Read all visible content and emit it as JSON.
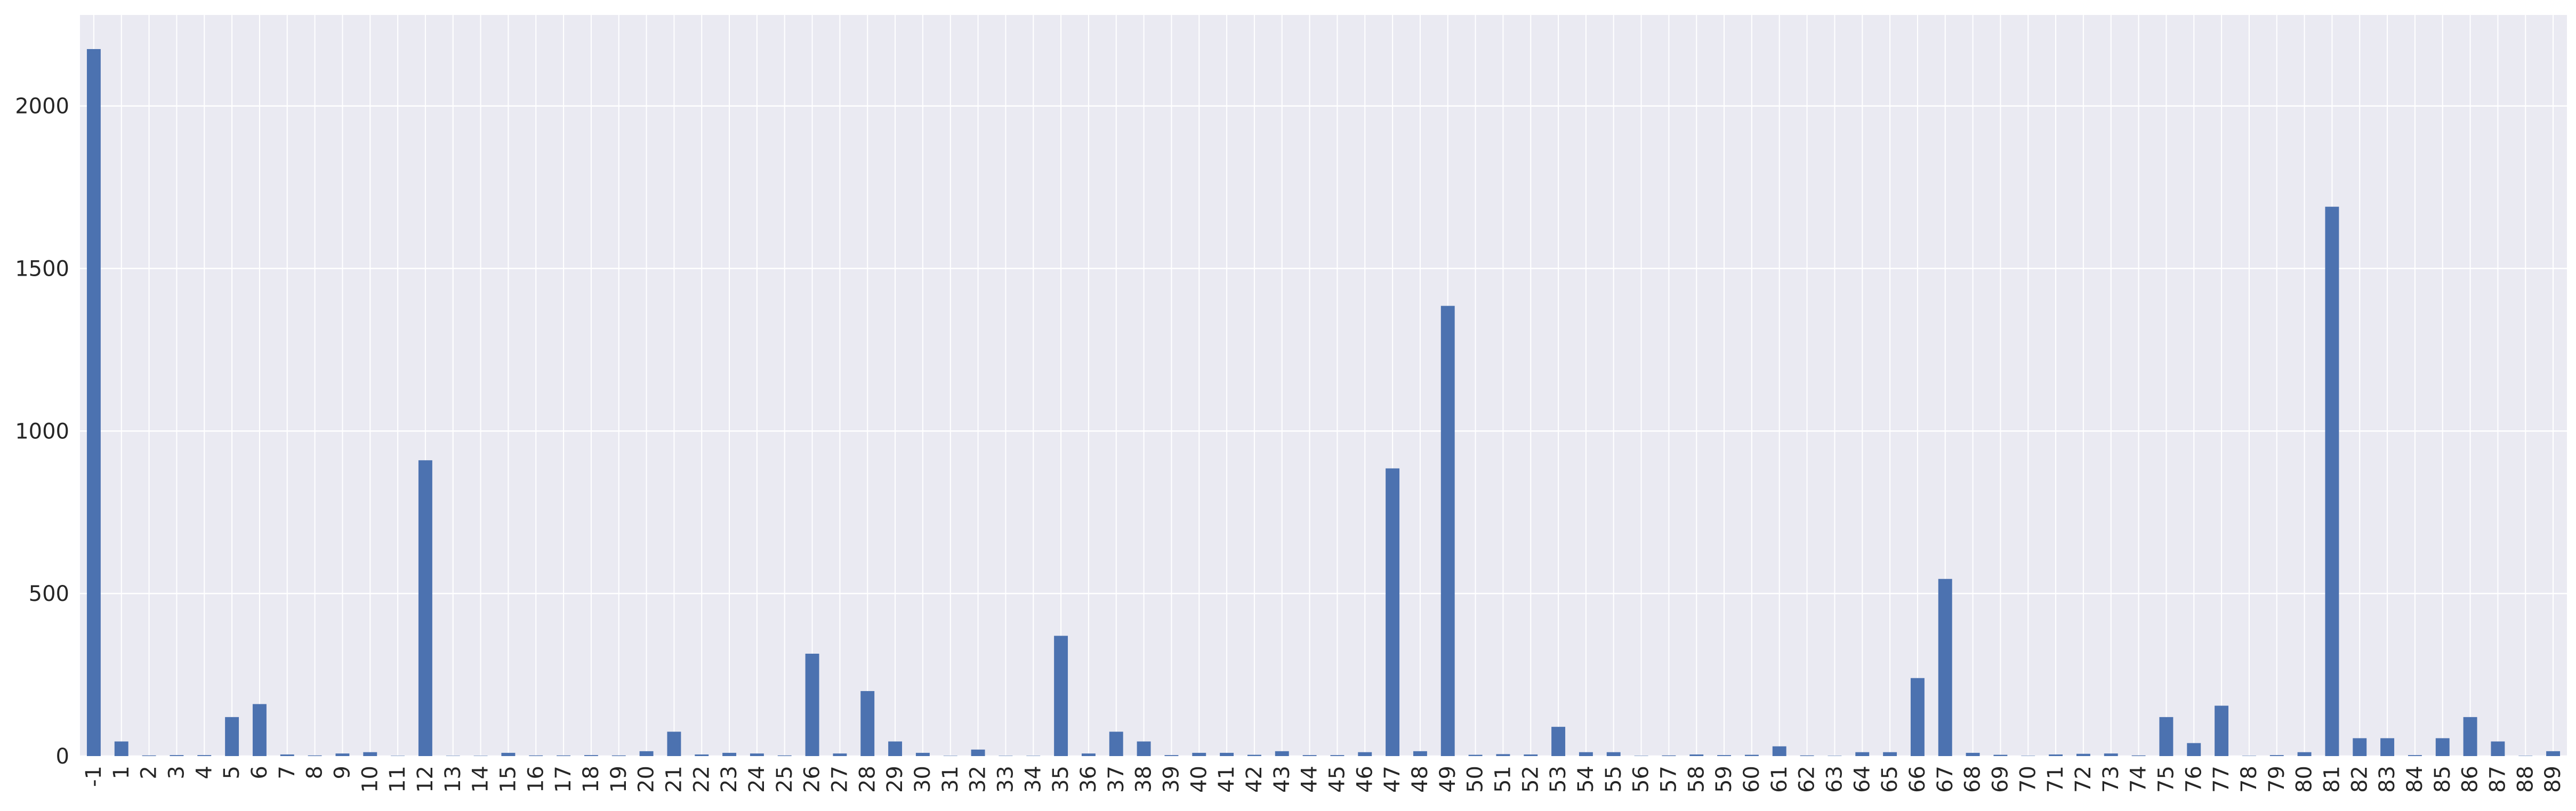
{
  "chart_data": {
    "type": "bar",
    "title": "",
    "xlabel": "",
    "ylabel": "",
    "ylim": [
      0,
      2280
    ],
    "yticks": [
      0,
      500,
      1000,
      1500,
      2000
    ],
    "grid": true,
    "legend": "none",
    "colors": {
      "bar": "#4c72b0",
      "background": "#eaeaf2",
      "grid": "#ffffff",
      "text": "#262626"
    },
    "categories": [
      "-1",
      "1",
      "2",
      "3",
      "4",
      "5",
      "6",
      "7",
      "8",
      "9",
      "10",
      "11",
      "12",
      "13",
      "14",
      "15",
      "16",
      "17",
      "18",
      "19",
      "20",
      "21",
      "22",
      "23",
      "24",
      "25",
      "26",
      "27",
      "28",
      "29",
      "30",
      "31",
      "32",
      "33",
      "34",
      "35",
      "36",
      "37",
      "38",
      "39",
      "40",
      "41",
      "42",
      "43",
      "44",
      "45",
      "46",
      "47",
      "48",
      "49",
      "50",
      "51",
      "52",
      "53",
      "54",
      "55",
      "56",
      "57",
      "58",
      "59",
      "60",
      "61",
      "62",
      "63",
      "64",
      "65",
      "66",
      "67",
      "68",
      "69",
      "70",
      "71",
      "72",
      "73",
      "74",
      "75",
      "76",
      "77",
      "78",
      "79",
      "80",
      "81",
      "82",
      "83",
      "84",
      "85",
      "86",
      "87",
      "88",
      "89"
    ],
    "values": [
      2175,
      45,
      2,
      3,
      3,
      120,
      160,
      5,
      2,
      8,
      12,
      1,
      910,
      1,
      1,
      10,
      2,
      2,
      3,
      2,
      15,
      75,
      5,
      10,
      8,
      2,
      315,
      8,
      200,
      45,
      10,
      1,
      20,
      1,
      1,
      370,
      8,
      75,
      45,
      3,
      10,
      10,
      4,
      15,
      3,
      3,
      12,
      885,
      15,
      1385,
      4,
      6,
      5,
      90,
      12,
      12,
      1,
      2,
      5,
      3,
      4,
      30,
      2,
      1,
      12,
      12,
      240,
      545,
      10,
      4,
      1,
      5,
      7,
      8,
      2,
      120,
      40,
      155,
      1,
      3,
      12,
      1690,
      55,
      55,
      3,
      55,
      120,
      45,
      1,
      15
    ]
  }
}
